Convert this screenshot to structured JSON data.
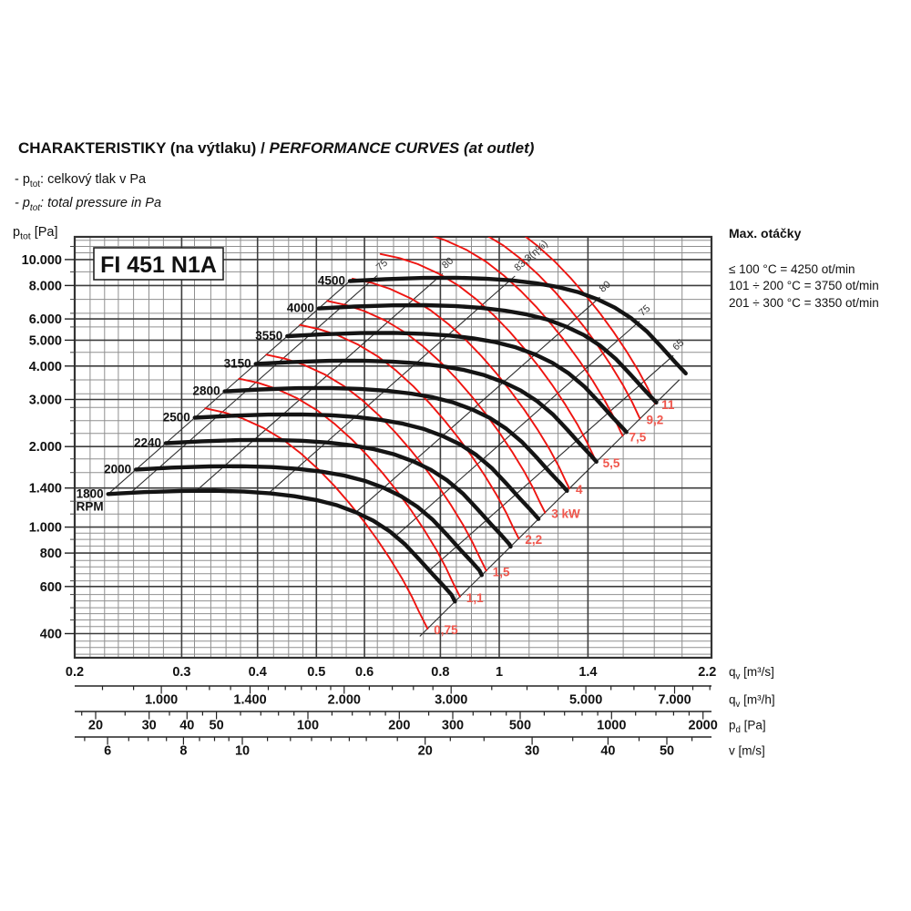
{
  "header": {
    "title_cs": "CHARAKTERISTIKY (na výtlaku)",
    "title_sep": " / ",
    "title_en": "PERFORMANCE CURVES (at outlet)",
    "bullets": [
      {
        "pre": "- p",
        "sub": "tot",
        "post": ": celkový tlak v Pa"
      },
      {
        "pre": "- p",
        "sub": "tot",
        "post": ": total pressure in Pa"
      }
    ]
  },
  "side_panel": {
    "heading": "Max. otáčky",
    "lines": [
      "≤ 100 °C = 4250 ot/min",
      "101 ÷ 200 °C = 3750 ot/min",
      "201 ÷ 300 °C = 3350 ot/min"
    ]
  },
  "chart_data": {
    "type": "line",
    "model_label": "FI 451 N1A",
    "x_range_m3s": [
      0.2,
      2.236
    ],
    "y_range_pa": [
      325,
      12160
    ],
    "y_axis": {
      "sym": "p",
      "sub": "tot",
      "unit": "[Pa]",
      "major_ticks": [
        {
          "p": 10000,
          "label": "10.000"
        },
        {
          "p": 8000,
          "label": "8.000"
        },
        {
          "p": 6000,
          "label": "6.000"
        },
        {
          "p": 5000,
          "label": "5.000"
        },
        {
          "p": 4000,
          "label": "4.000"
        },
        {
          "p": 3000,
          "label": "3.000"
        },
        {
          "p": 2000,
          "label": "2.000"
        },
        {
          "p": 1400,
          "label": "1.400"
        },
        {
          "p": 1000,
          "label": "1.000"
        },
        {
          "p": 800,
          "label": "800"
        },
        {
          "p": 600,
          "label": "600"
        },
        {
          "p": 400,
          "label": "400"
        }
      ],
      "minor_out": [
        450,
        500,
        560,
        630,
        710,
        900,
        1120,
        1250,
        1600,
        1800,
        2240,
        2500,
        2800,
        3550,
        4500,
        5600,
        6300,
        7100,
        9000,
        11200
      ]
    },
    "x_axis": {
      "sym": "q",
      "sub": "v",
      "unit": "[m³/s]",
      "ticks": [
        {
          "q": 0.2,
          "label": "0.2"
        },
        {
          "q": 0.3,
          "label": "0.3"
        },
        {
          "q": 0.4,
          "label": "0.4"
        },
        {
          "q": 0.5,
          "label": "0.5"
        },
        {
          "q": 0.6,
          "label": "0.6"
        },
        {
          "q": 0.8,
          "label": "0.8"
        },
        {
          "q": 1,
          "label": "1"
        },
        {
          "q": 1.4,
          "label": "1.4"
        },
        {
          "q": 2.2,
          "label": "2.2"
        }
      ]
    },
    "rulers": [
      {
        "sym": "q",
        "sub": "v",
        "unit": "[m³/h]",
        "ref": 720,
        "q_at_ref": 0.2,
        "exp": 1,
        "ticks": [
          800,
          900,
          1000,
          1100,
          1200,
          1300,
          1400,
          1500,
          1600,
          1700,
          1800,
          1900,
          2000,
          2200,
          2400,
          2600,
          2800,
          3000,
          3500,
          4000,
          4500,
          5000,
          5500,
          6000,
          6500,
          7000,
          7500,
          8000
        ],
        "majors": [
          {
            "v": 1000,
            "label": "1.000"
          },
          {
            "v": 1400,
            "label": "1.400"
          },
          {
            "v": 2000,
            "label": "2.000"
          },
          {
            "v": 3000,
            "label": "3.000"
          },
          {
            "v": 5000,
            "label": "5.000"
          },
          {
            "v": 7000,
            "label": "7.000"
          }
        ]
      },
      {
        "sym": "p",
        "sub": "d",
        "unit": "[Pa]",
        "ref": 20,
        "q_at_ref": 0.2165,
        "exp": 2,
        "ticks": [
          18,
          20,
          25,
          30,
          35,
          40,
          45,
          50,
          60,
          70,
          80,
          90,
          100,
          120,
          140,
          160,
          180,
          200,
          250,
          300,
          350,
          400,
          450,
          500,
          600,
          700,
          800,
          900,
          1000,
          1200,
          1400,
          1600,
          1800,
          2000
        ],
        "majors": [
          {
            "v": 20,
            "label": "20"
          },
          {
            "v": 30,
            "label": "30"
          },
          {
            "v": 40,
            "label": "40"
          },
          {
            "v": 50,
            "label": "50"
          },
          {
            "v": 100,
            "label": "100"
          },
          {
            "v": 200,
            "label": "200"
          },
          {
            "v": 300,
            "label": "300"
          },
          {
            "v": 500,
            "label": "500"
          },
          {
            "v": 1000,
            "label": "1000"
          },
          {
            "v": 2000,
            "label": "2000"
          }
        ]
      },
      {
        "sym": "v",
        "sub": "",
        "unit": "[m/s]",
        "ref": 10,
        "q_at_ref": 0.3776,
        "exp": 1,
        "ticks": [
          5.5,
          6,
          6.5,
          7,
          7.5,
          8,
          8.5,
          9,
          9.5,
          10,
          11,
          12,
          13,
          14,
          15,
          16,
          18,
          20,
          22,
          25,
          30,
          35,
          40,
          45,
          50,
          55
        ],
        "majors": [
          {
            "v": 6,
            "label": "6"
          },
          {
            "v": 8,
            "label": "8"
          },
          {
            "v": 10,
            "label": "10"
          },
          {
            "v": 20,
            "label": "20"
          },
          {
            "v": 30,
            "label": "30"
          },
          {
            "v": 40,
            "label": "40"
          },
          {
            "v": 50,
            "label": "50"
          }
        ]
      }
    ],
    "grid": {
      "r40": [
        1,
        1.06,
        1.12,
        1.18,
        1.25,
        1.32,
        1.4,
        1.5,
        1.6,
        1.7,
        1.8,
        1.9,
        2,
        2.12,
        2.24,
        2.36,
        2.5,
        2.65,
        2.8,
        3,
        3.15,
        3.35,
        3.55,
        3.75,
        4,
        4.25,
        4.5,
        4.75,
        5,
        5.3,
        5.6,
        6,
        6.3,
        6.7,
        7.1,
        7.5,
        8,
        8.5,
        9,
        9.5
      ],
      "r20": [
        1,
        1.12,
        1.25,
        1.4,
        1.6,
        1.8,
        2,
        2.24,
        2.5,
        2.8,
        3.15,
        3.55,
        4,
        4.5,
        5,
        5.6,
        6.3,
        7.1,
        8,
        9
      ],
      "x_major_lines": [
        0.3,
        0.4,
        0.5,
        0.6,
        0.8,
        1,
        1.4
      ],
      "y_major_lines": [
        400,
        600,
        800,
        1000,
        1400,
        2000,
        3000,
        4000,
        5000,
        6000,
        8000,
        10000
      ]
    },
    "rpm_curves": {
      "unit": "RPM",
      "ref_rpm": 1800,
      "rpms": [
        1800,
        2000,
        2240,
        2500,
        2800,
        3150,
        3550,
        4000,
        4500
      ],
      "base_curve": [
        [
          0.227,
          1330
        ],
        [
          0.26,
          1352
        ],
        [
          0.3,
          1366
        ],
        [
          0.34,
          1368
        ],
        [
          0.38,
          1358
        ],
        [
          0.42,
          1337
        ],
        [
          0.46,
          1305
        ],
        [
          0.5,
          1263
        ],
        [
          0.54,
          1208
        ],
        [
          0.58,
          1138
        ],
        [
          0.62,
          1058
        ],
        [
          0.66,
          965
        ],
        [
          0.7,
          862
        ],
        [
          0.74,
          754
        ],
        [
          0.78,
          660
        ],
        [
          0.81,
          603
        ],
        [
          0.835,
          558
        ],
        [
          0.848,
          520
        ]
      ]
    },
    "power_curves": {
      "unit": "kW",
      "ref_kw": 3,
      "kw": [
        0.75,
        1.1,
        1.5,
        2.2,
        3,
        4,
        5.5,
        7.5,
        9.2,
        11
      ],
      "labels": [
        "0,75",
        "1,1",
        "1,5",
        "2,2",
        "3 kW",
        "4",
        "5,5",
        "7,5",
        "9,2",
        "11"
      ],
      "base_curve": [
        [
          0.521,
          7005
        ],
        [
          0.56,
          6760
        ],
        [
          0.6,
          6420
        ],
        [
          0.65,
          5910
        ],
        [
          0.7,
          5340
        ],
        [
          0.75,
          4730
        ],
        [
          0.8,
          4140
        ],
        [
          0.85,
          3590
        ],
        [
          0.9,
          3090
        ],
        [
          0.95,
          2650
        ],
        [
          1,
          2260
        ],
        [
          1.05,
          1915
        ],
        [
          1.1,
          1610
        ],
        [
          1.14,
          1385
        ],
        [
          1.17,
          1222
        ],
        [
          1.21,
          1050
        ]
      ]
    },
    "boundary": {
      "q_ref": 0.861,
      "p_ref": 549,
      "exp": 2.244,
      "q0": 0.74,
      "q1": 1.98
    },
    "efficiency_lines": [
      {
        "c": 25800,
        "label": "",
        "ext": 0
      },
      {
        "c": 22000,
        "label": "75",
        "ext": 0.008
      },
      {
        "c": 13600,
        "label": "80",
        "ext": 0.008
      },
      {
        "c": 7700,
        "label": "83,3(η%)",
        "ext": 0.008
      },
      {
        "c": 3370,
        "label": "80",
        "ext": 0.004
      },
      {
        "c": 2030,
        "label": "75",
        "ext": 0.004
      },
      {
        "c": 1170,
        "label": "65",
        "ext": 0.004
      }
    ],
    "colors": {
      "curve_black": "#141414",
      "curve_red": "#ee1410",
      "red_label": "#f0564c",
      "grid_minor": "#8f8f8f",
      "grid_major": "#3d3d3d",
      "border": "#333333",
      "net": "#2e2e2e"
    }
  }
}
